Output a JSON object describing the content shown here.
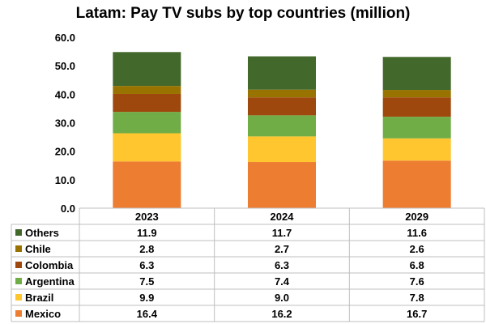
{
  "chart_data": {
    "type": "bar",
    "stacked": true,
    "title": "Latam: Pay TV subs by top countries (million)",
    "categories": [
      "2023",
      "2024",
      "2029"
    ],
    "ylim": [
      0,
      60
    ],
    "yticks": [
      "0.0",
      "10.0",
      "20.0",
      "30.0",
      "40.0",
      "50.0",
      "60.0"
    ],
    "series": [
      {
        "name": "Mexico",
        "color": "#ed7d31",
        "values": [
          16.4,
          16.2,
          16.7
        ],
        "labels": [
          "16.4",
          "16.2",
          "16.7"
        ]
      },
      {
        "name": "Brazil",
        "color": "#ffc62f",
        "values": [
          9.9,
          9.0,
          7.8
        ],
        "labels": [
          "9.9",
          "9.0",
          "7.8"
        ]
      },
      {
        "name": "Argentina",
        "color": "#70ad47",
        "values": [
          7.5,
          7.4,
          7.6
        ],
        "labels": [
          "7.5",
          "7.4",
          "7.6"
        ]
      },
      {
        "name": "Colombia",
        "color": "#9e480e",
        "values": [
          6.3,
          6.3,
          6.8
        ],
        "labels": [
          "6.3",
          "6.3",
          "6.8"
        ]
      },
      {
        "name": "Chile",
        "color": "#997300",
        "values": [
          2.8,
          2.7,
          2.6
        ],
        "labels": [
          "2.8",
          "2.7",
          "2.6"
        ]
      },
      {
        "name": "Others",
        "color": "#43682b",
        "values": [
          11.9,
          11.7,
          11.6
        ],
        "labels": [
          "11.9",
          "11.7",
          "11.6"
        ]
      }
    ],
    "grid": false,
    "legend": "data-table-below"
  }
}
